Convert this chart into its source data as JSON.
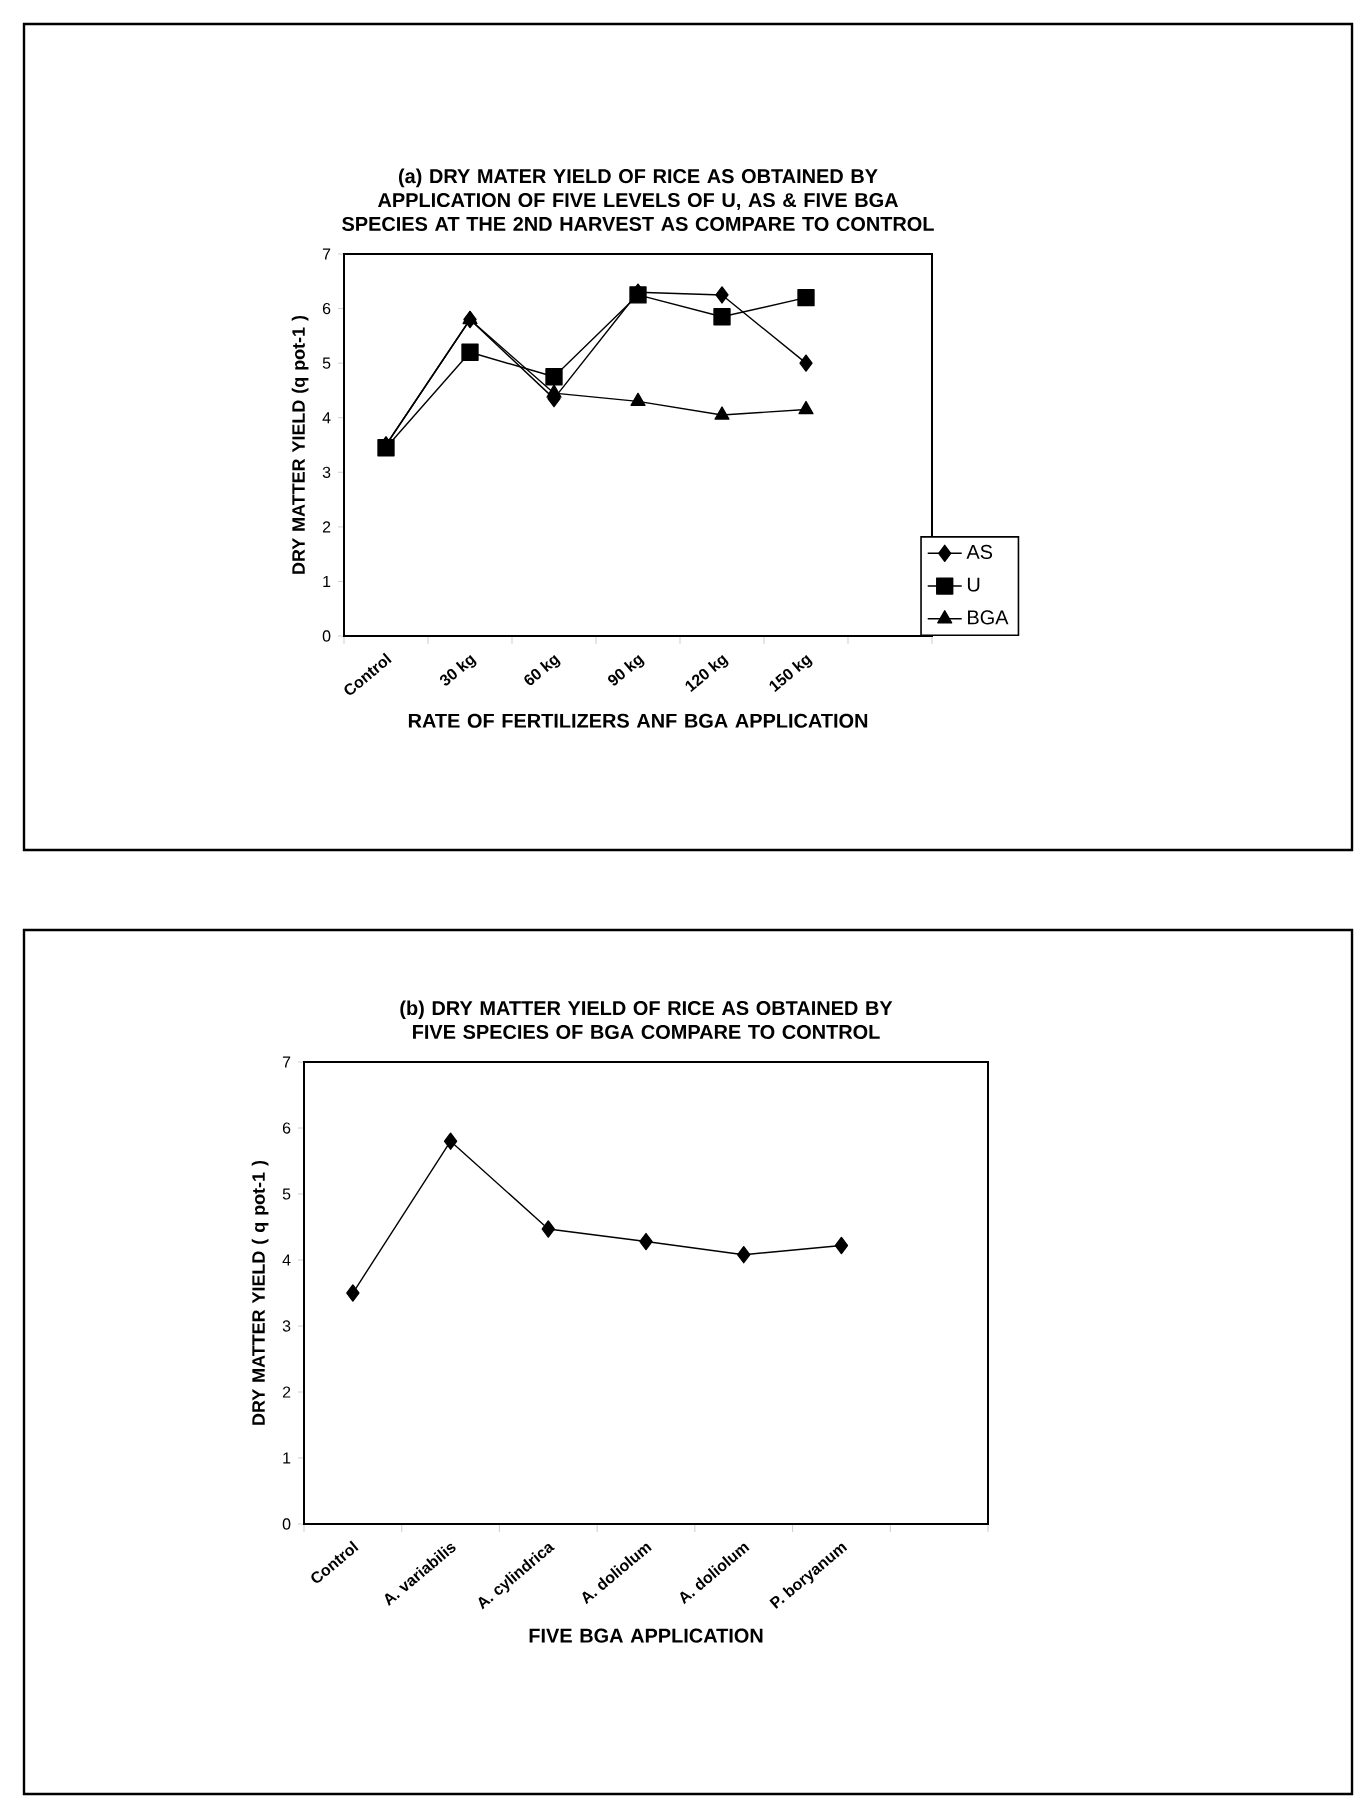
{
  "chart_data": [
    {
      "type": "line",
      "title": "(a) DRY MATER YIELD OF RICE AS OBTAINED BY APPLICATION OF  FIVE LEVELS OF U, AS & FIVE BGA SPECIES AT THE 2ND HARVEST AS COMPARE TO CONTROL",
      "xlabel": "RATE OF FERTILIZERS ANF BGA APPLICATION",
      "ylabel": "DRY MATTER YIELD (q pot-1 )",
      "categories": [
        "Control",
        "30 kg",
        "60 kg",
        "90 kg",
        "120 kg",
        "150 kg",
        null
      ],
      "series": [
        {
          "name": "AS",
          "color": "#000000",
          "marker": "diamond",
          "values": [
            3.5,
            5.8,
            4.35,
            6.3,
            6.25,
            5.0,
            null
          ]
        },
        {
          "name": "U",
          "color": "#000000",
          "marker": "square",
          "values": [
            3.45,
            5.2,
            4.75,
            6.25,
            5.85,
            6.2,
            null
          ]
        },
        {
          "name": "BGA",
          "color": "#000000",
          "marker": "triangle",
          "values": [
            3.5,
            5.8,
            4.45,
            4.3,
            4.05,
            4.15,
            null
          ]
        }
      ],
      "ylim": [
        0,
        7
      ],
      "yticks": [
        0,
        1,
        2,
        3,
        4,
        5,
        6,
        7
      ],
      "legend": "bottom right",
      "grid": false
    },
    {
      "type": "line",
      "title": "(b) DRY MATTER YIELD OF RICE AS OBTAINED BY FIVE SPECIES OF BGA COMPARE TO CONTROL",
      "xlabel": "FIVE BGA APPLICATION",
      "ylabel": "DRY MATTER YIELD ( q pot-1 )",
      "categories": [
        "Control",
        "A. variabilis",
        "A. cylindrica",
        "A. doliolum",
        "A. doliolum",
        "P. boryanum",
        null
      ],
      "series": [
        {
          "color": "#000000",
          "marker": "diamond",
          "values": [
            3.5,
            5.8,
            4.47,
            4.28,
            4.08,
            4.22,
            null
          ]
        }
      ],
      "ylim": [
        0,
        7
      ],
      "yticks": [
        0,
        1,
        2,
        3,
        4,
        5,
        6,
        7
      ],
      "legend": false,
      "grid": false
    }
  ]
}
